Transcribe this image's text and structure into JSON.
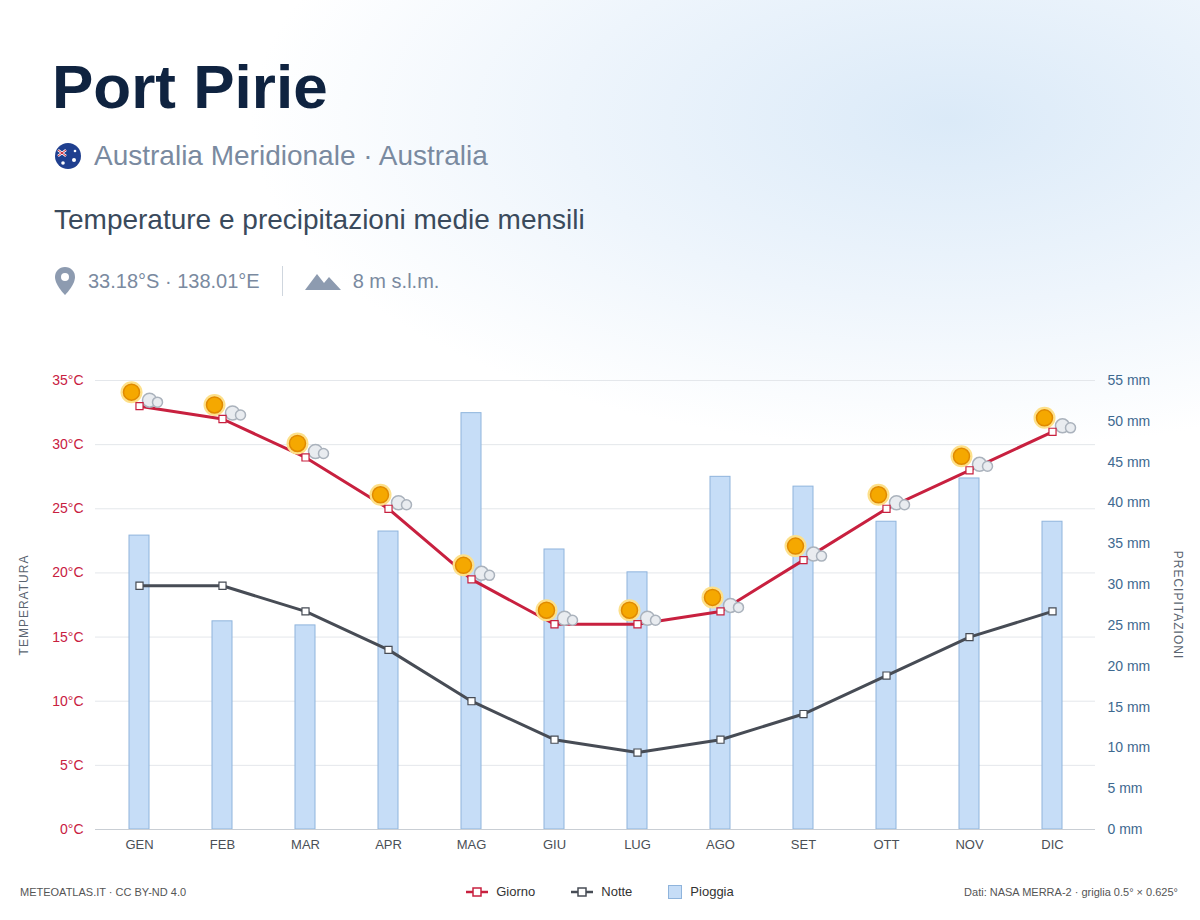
{
  "chart_data": {
    "type": "combo",
    "title": "Port Pirie",
    "subtitle": "Australia Meridionale · Australia",
    "annotations": {
      "heading": "Temperature e precipitazioni medie mensili",
      "coordinates": "33.18°S · 138.01°E",
      "elevation": "8 m s.l.m.",
      "credit": "METEOATLAS.IT · CC BY-ND 4.0",
      "source": "Dati: NASA MERRA-2 · griglia 0.5° × 0.625°"
    },
    "ylabel": "TEMPERATURA",
    "y2label": "PRECIPITAZIONI",
    "categories": [
      "GEN",
      "FEB",
      "MAR",
      "APR",
      "MAG",
      "GIU",
      "LUG",
      "AGO",
      "SET",
      "OTT",
      "NOV",
      "DIC"
    ],
    "series": [
      {
        "name": "Giorno",
        "type": "line",
        "marker": "square",
        "color": "#c8203f",
        "values": [
          33,
          32,
          29,
          25,
          19.5,
          16,
          16,
          17,
          21,
          25,
          28,
          31
        ]
      },
      {
        "name": "Notte",
        "type": "line",
        "marker": "square",
        "color": "#474c55",
        "values": [
          19,
          19,
          17,
          14,
          10,
          7,
          6,
          7,
          9,
          12,
          15,
          17
        ]
      },
      {
        "name": "Pioggia",
        "type": "bar",
        "axis": "y2",
        "color": "#c6ddf7",
        "values": [
          36,
          25.5,
          25,
          36.5,
          51,
          34.3,
          31.5,
          43.2,
          42,
          37.7,
          43,
          37.7
        ]
      }
    ],
    "ylim": [
      0,
      35
    ],
    "yticks": [
      {
        "value": 0,
        "label": "0°C"
      },
      {
        "value": 5,
        "label": "5°C"
      },
      {
        "value": 10,
        "label": "10°C"
      },
      {
        "value": 15,
        "label": "15°C"
      },
      {
        "value": 20,
        "label": "20°C"
      },
      {
        "value": 25,
        "label": "25°C"
      },
      {
        "value": 30,
        "label": "30°C"
      },
      {
        "value": 35,
        "label": "35°C"
      }
    ],
    "y2lim": [
      0,
      55
    ],
    "y2ticks": [
      {
        "value": 0,
        "label": "0 mm"
      },
      {
        "value": 5,
        "label": "5 mm"
      },
      {
        "value": 10,
        "label": "10 mm"
      },
      {
        "value": 15,
        "label": "15 mm"
      },
      {
        "value": 20,
        "label": "20 mm"
      },
      {
        "value": 25,
        "label": "25 mm"
      },
      {
        "value": 30,
        "label": "30 mm"
      },
      {
        "value": 35,
        "label": "35 mm"
      },
      {
        "value": 40,
        "label": "40 mm"
      },
      {
        "value": 45,
        "label": "45 mm"
      },
      {
        "value": 50,
        "label": "50 mm"
      },
      {
        "value": 55,
        "label": "55 mm"
      }
    ],
    "grid": true,
    "legend": "bottom"
  }
}
